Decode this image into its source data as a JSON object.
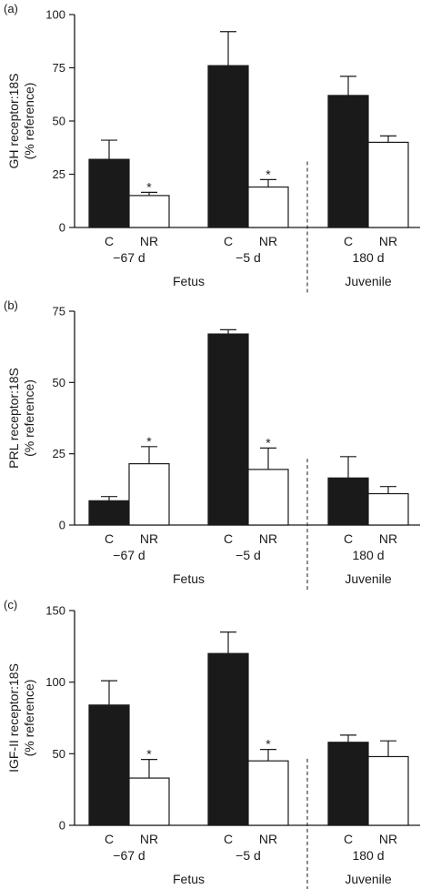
{
  "chart_data": [
    {
      "type": "bar",
      "panel_label": "(a)",
      "ylabel_lines": [
        "GH receptor:18S",
        "(% reference)"
      ],
      "ylim": [
        0,
        100
      ],
      "yticks": [
        0,
        25,
        50,
        75,
        100
      ],
      "groups": [
        {
          "label": "−67 d",
          "section": "Fetus",
          "bars": [
            {
              "category": "C",
              "value": 32,
              "error": 9,
              "fill": "#1a1a1a",
              "star": false
            },
            {
              "category": "NR",
              "value": 15,
              "error": 1.5,
              "fill": "#ffffff",
              "star": true
            }
          ]
        },
        {
          "label": "−5 d",
          "section": "Fetus",
          "bars": [
            {
              "category": "C",
              "value": 76,
              "error": 16,
              "fill": "#1a1a1a",
              "star": false
            },
            {
              "category": "NR",
              "value": 19,
              "error": 3.5,
              "fill": "#ffffff",
              "star": true
            }
          ]
        },
        {
          "label": "180 d",
          "section": "Juvenile",
          "bars": [
            {
              "category": "C",
              "value": 62,
              "error": 9,
              "fill": "#1a1a1a",
              "star": false
            },
            {
              "category": "NR",
              "value": 40,
              "error": 3,
              "fill": "#ffffff",
              "star": false
            }
          ]
        }
      ],
      "sections": [
        "Fetus",
        "Juvenile"
      ]
    },
    {
      "type": "bar",
      "panel_label": "(b)",
      "ylabel_lines": [
        "PRL receptor:18S",
        "(% reference)"
      ],
      "ylim": [
        0,
        75
      ],
      "yticks": [
        0,
        25,
        50,
        75
      ],
      "groups": [
        {
          "label": "−67 d",
          "section": "Fetus",
          "bars": [
            {
              "category": "C",
              "value": 8.5,
              "error": 1.5,
              "fill": "#1a1a1a",
              "star": false
            },
            {
              "category": "NR",
              "value": 21.5,
              "error": 6,
              "fill": "#ffffff",
              "star": true
            }
          ]
        },
        {
          "label": "−5 d",
          "section": "Fetus",
          "bars": [
            {
              "category": "C",
              "value": 67,
              "error": 1.5,
              "fill": "#1a1a1a",
              "star": false
            },
            {
              "category": "NR",
              "value": 19.5,
              "error": 7.5,
              "fill": "#ffffff",
              "star": true
            }
          ]
        },
        {
          "label": "180 d",
          "section": "Juvenile",
          "bars": [
            {
              "category": "C",
              "value": 16.5,
              "error": 7.5,
              "fill": "#1a1a1a",
              "star": false
            },
            {
              "category": "NR",
              "value": 11,
              "error": 2.5,
              "fill": "#ffffff",
              "star": false
            }
          ]
        }
      ],
      "sections": [
        "Fetus",
        "Juvenile"
      ]
    },
    {
      "type": "bar",
      "panel_label": "(c)",
      "ylabel_lines": [
        "IGF-II receptor:18S",
        "(% reference)"
      ],
      "ylim": [
        0,
        150
      ],
      "yticks": [
        0,
        50,
        100,
        150
      ],
      "groups": [
        {
          "label": "−67 d",
          "section": "Fetus",
          "bars": [
            {
              "category": "C",
              "value": 84,
              "error": 17,
              "fill": "#1a1a1a",
              "star": false
            },
            {
              "category": "NR",
              "value": 33,
              "error": 13,
              "fill": "#ffffff",
              "star": true
            }
          ]
        },
        {
          "label": "−5 d",
          "section": "Fetus",
          "bars": [
            {
              "category": "C",
              "value": 120,
              "error": 15,
              "fill": "#1a1a1a",
              "star": false
            },
            {
              "category": "NR",
              "value": 45,
              "error": 8,
              "fill": "#ffffff",
              "star": true
            }
          ]
        },
        {
          "label": "180 d",
          "section": "Juvenile",
          "bars": [
            {
              "category": "C",
              "value": 58,
              "error": 5,
              "fill": "#1a1a1a",
              "star": false
            },
            {
              "category": "NR",
              "value": 48,
              "error": 11,
              "fill": "#ffffff",
              "star": false
            }
          ]
        }
      ],
      "sections": [
        "Fetus",
        "Juvenile"
      ]
    }
  ]
}
